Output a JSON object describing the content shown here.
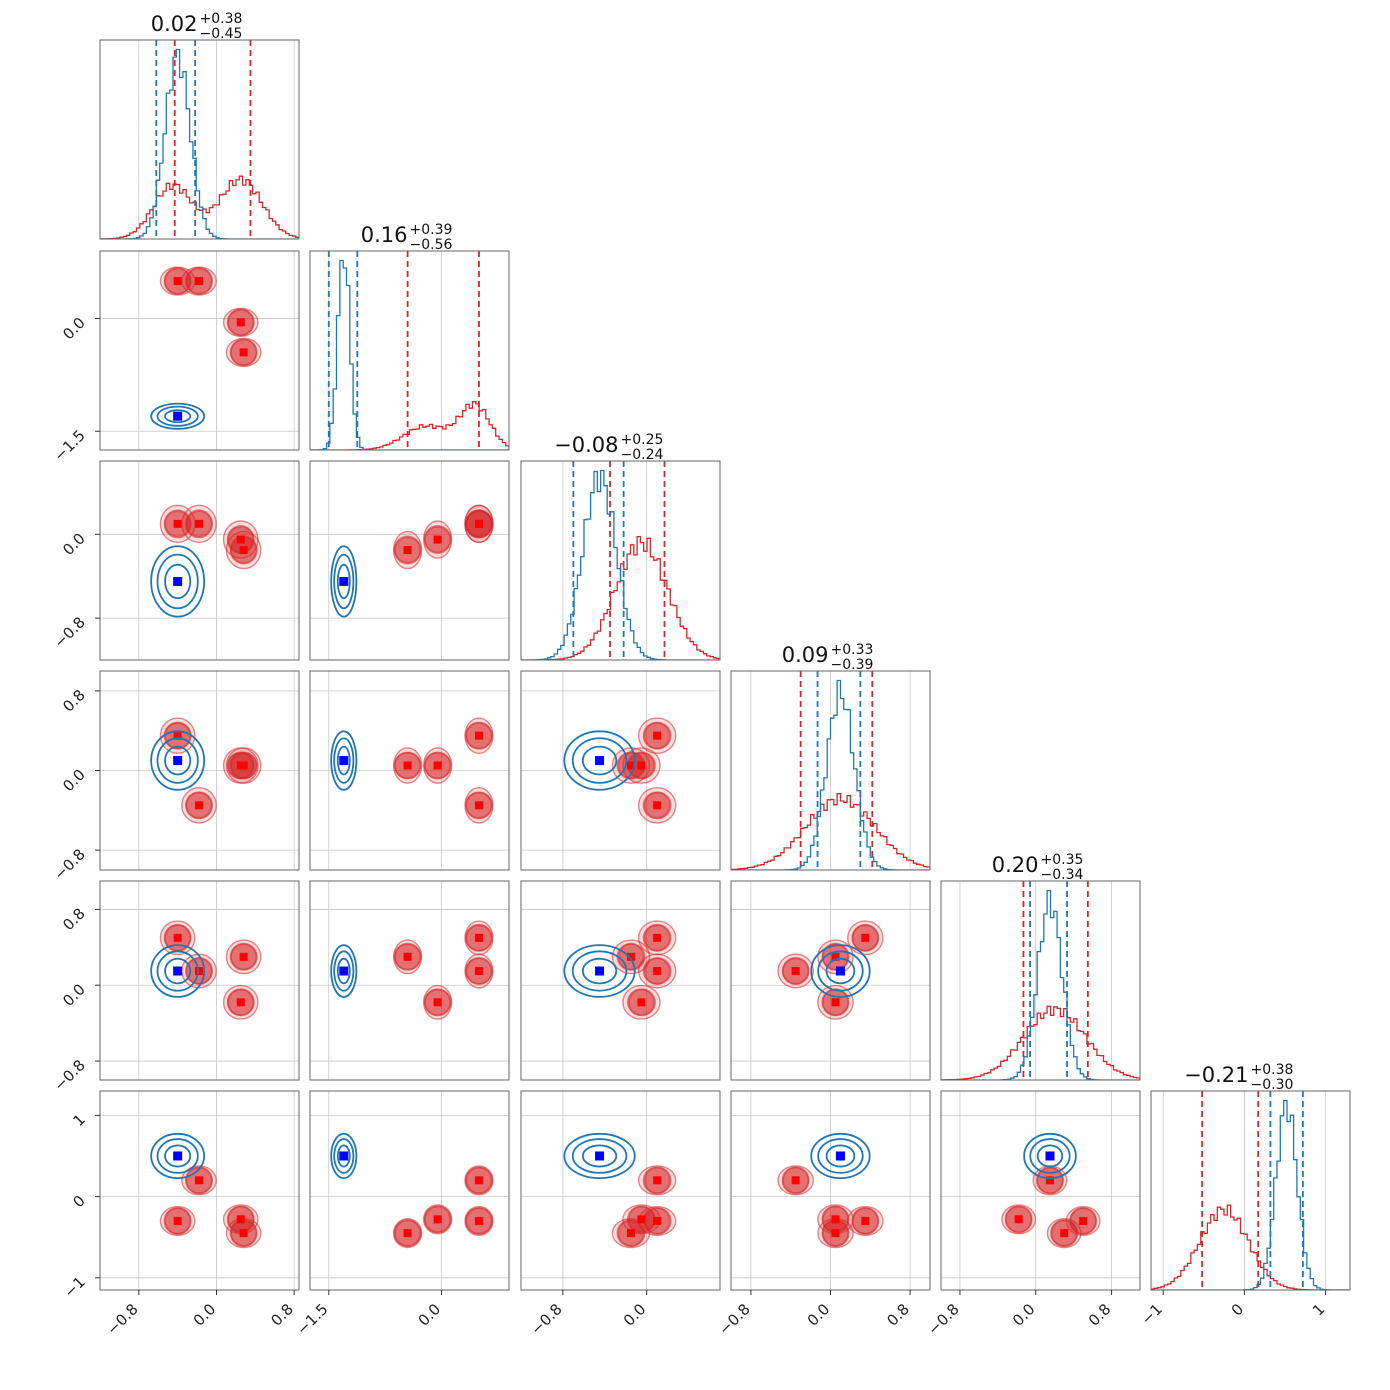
{
  "chart_data": {
    "type": "corner",
    "n_params": 6,
    "colors": {
      "red": "#d62728",
      "blue": "#1f77b4",
      "red_fill": "#d62728",
      "blue_marker": "#0000ff",
      "grid": "#c8c8c8",
      "frame": "#666666"
    },
    "titles": [
      {
        "main": "0.02",
        "up": "+0.38",
        "down": "−0.45"
      },
      {
        "main": "0.16",
        "up": "+0.39",
        "down": "−0.56"
      },
      {
        "main": "−0.08",
        "up": "+0.25",
        "down": "−0.24"
      },
      {
        "main": "0.09",
        "up": "+0.33",
        "down": "−0.39"
      },
      {
        "main": "0.20",
        "up": "+0.35",
        "down": "−0.34"
      },
      {
        "main": "−0.21",
        "up": "+0.38",
        "down": "−0.30"
      }
    ],
    "params": [
      {
        "range": [
          -1.2,
          0.85
        ],
        "ticks": [
          -0.8,
          0.0,
          0.8
        ],
        "tick_labels": [
          "−0.8",
          "0.0",
          "0.8"
        ]
      },
      {
        "range": [
          -1.75,
          0.9
        ],
        "ticks": [
          -1.5,
          0.0
        ],
        "tick_labels": [
          "−1.5",
          "0.0"
        ]
      },
      {
        "range": [
          -1.2,
          0.7
        ],
        "ticks": [
          -0.8,
          0.0
        ],
        "tick_labels": [
          "−0.8",
          "0.0"
        ]
      },
      {
        "range": [
          -1.0,
          1.0
        ],
        "ticks": [
          -0.8,
          0.0,
          0.8
        ],
        "tick_labels": [
          "−0.8",
          "0.0",
          "0.8"
        ]
      },
      {
        "range": [
          -1.0,
          1.1
        ],
        "ticks": [
          -0.8,
          0.0,
          0.8
        ],
        "tick_labels": [
          "−0.8",
          "0.0",
          "0.8"
        ]
      },
      {
        "range": [
          -1.15,
          1.3
        ],
        "ticks": [
          -1,
          0,
          1
        ],
        "tick_labels": [
          "−1",
          "0",
          "1"
        ]
      }
    ],
    "quantiles": {
      "red": [
        [
          -0.43,
          0.35
        ],
        [
          -0.45,
          0.5
        ],
        [
          -0.35,
          0.17
        ],
        [
          -0.3,
          0.42
        ],
        [
          -0.13,
          0.55
        ],
        [
          -0.52,
          0.17
        ]
      ],
      "blue": [
        [
          -0.62,
          -0.22
        ],
        [
          -1.5,
          -1.12
        ],
        [
          -0.7,
          -0.22
        ],
        [
          -0.13,
          0.3
        ],
        [
          -0.06,
          0.33
        ],
        [
          0.32,
          0.72
        ]
      ]
    },
    "hist": {
      "red": [
        [
          {
            "mu": -0.45,
            "s": 0.2,
            "w": 0.45
          },
          {
            "mu": 0.25,
            "s": 0.22,
            "w": 0.55
          }
        ],
        [
          {
            "mu": -0.2,
            "s": 0.3,
            "w": 0.45
          },
          {
            "mu": 0.45,
            "s": 0.2,
            "w": 0.55
          }
        ],
        [
          {
            "mu": -0.05,
            "s": 0.25,
            "w": 1.0
          }
        ],
        [
          {
            "mu": 0.1,
            "s": 0.35,
            "w": 1.0
          }
        ],
        [
          {
            "mu": 0.2,
            "s": 0.33,
            "w": 1.0
          }
        ],
        [
          {
            "mu": -0.25,
            "s": 0.3,
            "w": 1.0
          }
        ]
      ],
      "blue": [
        [
          {
            "mu": -0.4,
            "s": 0.13,
            "w": 1.0
          }
        ],
        [
          {
            "mu": -1.3,
            "s": 0.08,
            "w": 1.0
          }
        ],
        [
          {
            "mu": -0.45,
            "s": 0.16,
            "w": 1.0
          }
        ],
        [
          {
            "mu": 0.1,
            "s": 0.14,
            "w": 1.0
          }
        ],
        [
          {
            "mu": 0.15,
            "s": 0.13,
            "w": 1.0
          }
        ],
        [
          {
            "mu": 0.52,
            "s": 0.13,
            "w": 1.0
          }
        ]
      ]
    },
    "red_modes": [
      [
        -0.4,
        -0.18,
        0.25,
        0.28
      ],
      [
        0.5,
        0.5,
        -0.05,
        -0.45
      ],
      [
        0.1,
        0.1,
        -0.05,
        -0.15
      ],
      [
        0.35,
        -0.35,
        0.05,
        0.05
      ],
      [
        0.5,
        0.15,
        -0.18,
        0.3
      ],
      [
        -0.3,
        0.2,
        -0.28,
        -0.45
      ]
    ],
    "blue_mode": [
      -0.4,
      -1.3,
      -0.45,
      0.1,
      0.15,
      0.5
    ]
  }
}
